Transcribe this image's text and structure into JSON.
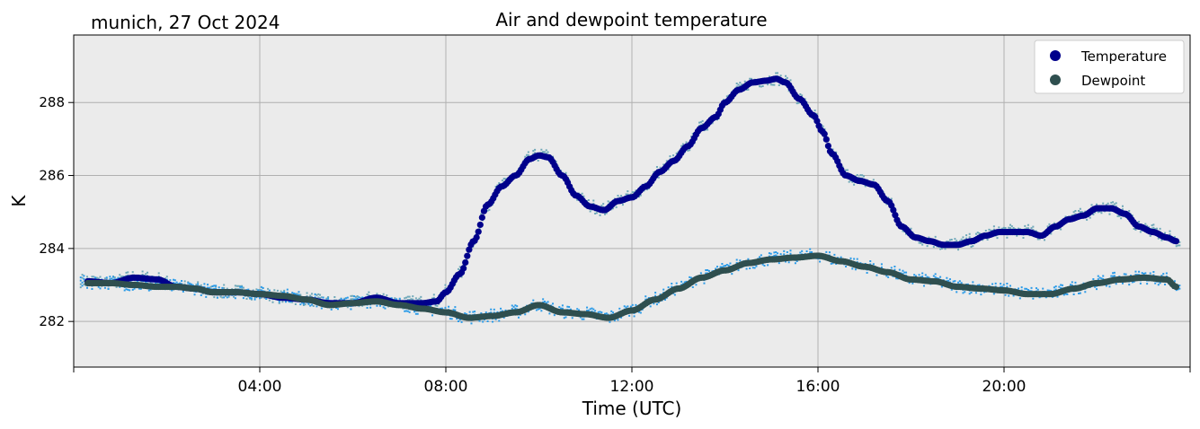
{
  "header": {
    "location_date": "munich, 27 Oct 2024"
  },
  "chart_data": {
    "type": "scatter",
    "title": "Air and dewpoint temperature",
    "xlabel": "Time (UTC)",
    "ylabel": "K",
    "xlim": [
      0,
      24
    ],
    "ylim": [
      280.75,
      289.85
    ],
    "x_ticks": [
      {
        "value": 4,
        "label": "04:00"
      },
      {
        "value": 8,
        "label": "08:00"
      },
      {
        "value": 12,
        "label": "12:00"
      },
      {
        "value": 16,
        "label": "16:00"
      },
      {
        "value": 20,
        "label": "20:00"
      }
    ],
    "y_ticks": [
      {
        "value": 282,
        "label": "282"
      },
      {
        "value": 284,
        "label": "284"
      },
      {
        "value": 286,
        "label": "286"
      },
      {
        "value": 288,
        "label": "288"
      }
    ],
    "grid": true,
    "legend_position": "top-right",
    "background": "#ebebeb",
    "series": [
      {
        "name": "Temperature",
        "color": "#00008b",
        "raw_color": "#6fa8b8",
        "x": [
          0.3,
          0.8,
          1.3,
          1.8,
          2.2,
          2.6,
          3.0,
          3.5,
          4.0,
          4.5,
          5.0,
          5.5,
          6.0,
          6.5,
          7.0,
          7.5,
          7.8,
          8.0,
          8.3,
          8.6,
          8.9,
          9.2,
          9.5,
          9.8,
          10.0,
          10.2,
          10.5,
          10.8,
          11.1,
          11.4,
          11.7,
          12.0,
          12.3,
          12.6,
          12.9,
          13.2,
          13.5,
          13.8,
          14.0,
          14.3,
          14.6,
          14.9,
          15.1,
          15.3,
          15.6,
          15.9,
          16.1,
          16.3,
          16.6,
          16.9,
          17.2,
          17.5,
          17.8,
          18.1,
          18.4,
          18.7,
          19.0,
          19.3,
          19.6,
          19.9,
          20.2,
          20.5,
          20.8,
          21.1,
          21.4,
          21.7,
          22.0,
          22.3,
          22.6,
          22.9,
          23.2,
          23.5,
          23.7
        ],
        "values": [
          283.1,
          283.05,
          283.2,
          283.15,
          282.95,
          282.9,
          282.8,
          282.8,
          282.75,
          282.65,
          282.6,
          282.5,
          282.5,
          282.65,
          282.5,
          282.5,
          282.55,
          282.8,
          283.3,
          284.2,
          285.2,
          285.7,
          286.0,
          286.45,
          286.55,
          286.5,
          286.0,
          285.45,
          285.15,
          285.05,
          285.3,
          285.4,
          285.7,
          286.1,
          286.4,
          286.8,
          287.3,
          287.6,
          288.0,
          288.35,
          288.55,
          288.6,
          288.65,
          288.55,
          288.1,
          287.65,
          287.2,
          286.6,
          286.0,
          285.85,
          285.75,
          285.3,
          284.6,
          284.3,
          284.2,
          284.1,
          284.1,
          284.2,
          284.35,
          284.45,
          284.45,
          284.45,
          284.35,
          284.6,
          284.8,
          284.9,
          285.1,
          285.1,
          284.95,
          284.6,
          284.45,
          284.3,
          284.2
        ]
      },
      {
        "name": "Dewpoint",
        "color": "#2f4f4f",
        "raw_color": "#2b9be8",
        "x": [
          0.3,
          0.8,
          1.3,
          1.8,
          2.2,
          2.6,
          3.0,
          3.5,
          4.0,
          4.5,
          5.0,
          5.5,
          6.0,
          6.5,
          7.0,
          7.5,
          8.0,
          8.5,
          9.0,
          9.5,
          10.0,
          10.5,
          11.0,
          11.5,
          12.0,
          12.5,
          13.0,
          13.5,
          14.0,
          14.5,
          15.0,
          15.5,
          16.0,
          16.5,
          17.0,
          17.5,
          18.0,
          18.5,
          19.0,
          19.5,
          20.0,
          20.5,
          21.0,
          21.5,
          22.0,
          22.5,
          23.0,
          23.5,
          23.7
        ],
        "values": [
          283.05,
          283.05,
          283.0,
          282.95,
          282.95,
          282.9,
          282.8,
          282.8,
          282.75,
          282.7,
          282.6,
          282.45,
          282.5,
          282.55,
          282.45,
          282.35,
          282.25,
          282.1,
          282.15,
          282.25,
          282.45,
          282.25,
          282.2,
          282.1,
          282.3,
          282.6,
          282.9,
          283.2,
          283.4,
          283.6,
          283.7,
          283.75,
          283.8,
          283.65,
          283.5,
          283.35,
          283.15,
          283.1,
          282.95,
          282.9,
          282.85,
          282.75,
          282.75,
          282.9,
          283.05,
          283.15,
          283.2,
          283.15,
          282.95
        ]
      }
    ]
  }
}
